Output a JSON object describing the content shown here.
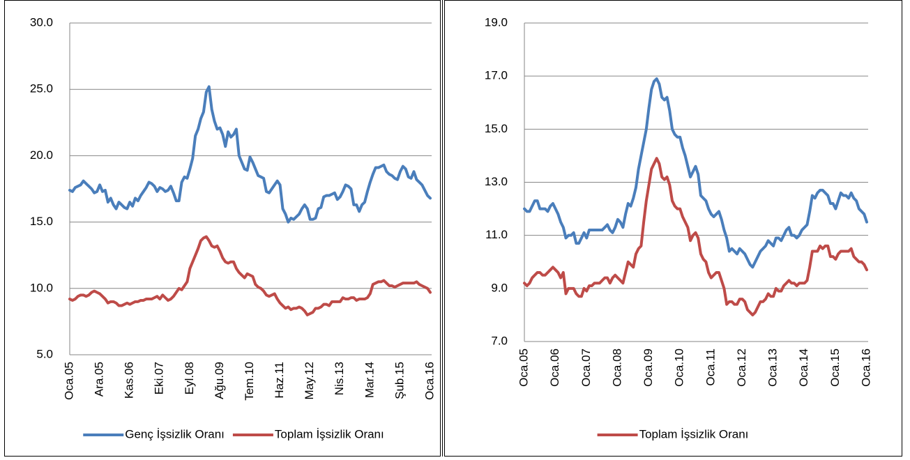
{
  "chart_data": [
    {
      "type": "line",
      "categories": [
        "Oca.05",
        null,
        null,
        null,
        null,
        null,
        null,
        null,
        null,
        null,
        null,
        "Ara.05",
        null,
        null,
        null,
        null,
        null,
        null,
        null,
        null,
        null,
        null,
        "Kas.06",
        null,
        null,
        null,
        null,
        null,
        null,
        null,
        null,
        null,
        null,
        "Eki.07",
        null,
        null,
        null,
        null,
        null,
        null,
        null,
        null,
        null,
        null,
        "Eyl.08",
        null,
        null,
        null,
        null,
        null,
        null,
        null,
        null,
        null,
        null,
        "Ağu.09",
        null,
        null,
        null,
        null,
        null,
        null,
        null,
        null,
        null,
        null,
        "Tem.10",
        null,
        null,
        null,
        null,
        null,
        null,
        null,
        null,
        null,
        null,
        "Haz.11",
        null,
        null,
        null,
        null,
        null,
        null,
        null,
        null,
        null,
        null,
        "May.12",
        null,
        null,
        null,
        null,
        null,
        null,
        null,
        null,
        null,
        null,
        "Nis.13",
        null,
        null,
        null,
        null,
        null,
        null,
        null,
        null,
        null,
        null,
        "Mar.14",
        null,
        null,
        null,
        null,
        null,
        null,
        null,
        null,
        null,
        null,
        "Şub.15",
        null,
        null,
        null,
        null,
        null,
        null,
        null,
        null,
        null,
        null,
        "Oca.16"
      ],
      "series": [
        {
          "name": "Genç İşsizlik Oranı",
          "color": "#4a7ebb",
          "values": [
            17.4,
            17.3,
            17.6,
            17.7,
            17.8,
            18.1,
            17.9,
            17.7,
            17.5,
            17.2,
            17.3,
            17.8,
            17.3,
            17.4,
            16.5,
            16.8,
            16.3,
            16.0,
            16.5,
            16.3,
            16.1,
            16.0,
            16.5,
            16.2,
            16.8,
            16.6,
            17.0,
            17.3,
            17.6,
            18.0,
            17.9,
            17.7,
            17.3,
            17.6,
            17.5,
            17.3,
            17.4,
            17.7,
            17.2,
            16.6,
            16.6,
            18.0,
            18.4,
            18.3,
            19.0,
            19.8,
            21.5,
            22.0,
            22.8,
            23.3,
            24.8,
            25.2,
            23.5,
            22.6,
            22.0,
            22.1,
            21.6,
            20.7,
            21.8,
            21.4,
            21.6,
            22.0,
            20.0,
            19.5,
            19.0,
            18.9,
            19.9,
            19.5,
            19.0,
            18.5,
            18.4,
            18.3,
            17.3,
            17.2,
            17.5,
            17.8,
            18.1,
            17.8,
            16.0,
            15.6,
            15.0,
            15.3,
            15.2,
            15.4,
            15.6,
            16.0,
            16.3,
            16.0,
            15.2,
            15.2,
            15.3,
            16.0,
            16.1,
            16.9,
            17.0,
            17.0,
            17.1,
            17.2,
            16.7,
            16.9,
            17.3,
            17.8,
            17.7,
            17.5,
            16.3,
            16.3,
            15.8,
            16.3,
            16.5,
            17.3,
            18.0,
            18.6,
            19.1,
            19.1,
            19.2,
            19.3,
            18.8,
            18.6,
            18.5,
            18.3,
            18.2,
            18.8,
            19.2,
            19.0,
            18.4,
            18.3,
            18.8,
            18.2,
            18.0,
            17.8,
            17.4,
            17.0,
            16.8
          ]
        },
        {
          "name": "Toplam İşsizlik Oranı",
          "color": "#be4b48",
          "values": [
            9.2,
            9.1,
            9.2,
            9.4,
            9.5,
            9.5,
            9.4,
            9.5,
            9.7,
            9.8,
            9.7,
            9.6,
            9.4,
            9.2,
            8.9,
            9.0,
            9.0,
            8.9,
            8.7,
            8.7,
            8.8,
            8.9,
            8.8,
            8.9,
            9.0,
            9.0,
            9.1,
            9.1,
            9.2,
            9.2,
            9.2,
            9.3,
            9.4,
            9.2,
            9.5,
            9.3,
            9.1,
            9.2,
            9.4,
            9.7,
            10.0,
            9.9,
            10.2,
            10.5,
            11.5,
            12.0,
            12.5,
            13.0,
            13.6,
            13.8,
            13.9,
            13.6,
            13.2,
            13.1,
            13.2,
            12.8,
            12.3,
            12.0,
            11.9,
            12.0,
            12.0,
            11.5,
            11.2,
            11.0,
            10.8,
            11.1,
            11.0,
            10.9,
            10.3,
            10.1,
            10.0,
            9.8,
            9.5,
            9.4,
            9.5,
            9.6,
            9.2,
            8.9,
            8.7,
            8.5,
            8.6,
            8.4,
            8.5,
            8.5,
            8.6,
            8.5,
            8.3,
            8.0,
            8.1,
            8.2,
            8.5,
            8.5,
            8.6,
            8.8,
            8.8,
            8.7,
            9.0,
            9.0,
            9.0,
            9.0,
            9.3,
            9.2,
            9.2,
            9.3,
            9.3,
            9.1,
            9.2,
            9.2,
            9.2,
            9.3,
            9.6,
            10.3,
            10.4,
            10.5,
            10.5,
            10.6,
            10.4,
            10.2,
            10.2,
            10.1,
            10.2,
            10.3,
            10.4,
            10.4,
            10.4,
            10.4,
            10.4,
            10.5,
            10.3,
            10.2,
            10.1,
            10.0,
            9.7
          ]
        }
      ],
      "ylim": [
        5,
        30
      ],
      "yticks": [
        {
          "value": 5,
          "label": "5.0"
        },
        {
          "value": 10,
          "label": "10.0"
        },
        {
          "value": 15,
          "label": "15.0"
        },
        {
          "value": 20,
          "label": "20.0"
        },
        {
          "value": 25,
          "label": "25.0"
        },
        {
          "value": 30,
          "label": "30.0"
        }
      ],
      "grid": true,
      "legend": "bottom"
    },
    {
      "type": "line",
      "categories": [
        "Oca.05",
        null,
        null,
        null,
        null,
        null,
        null,
        null,
        null,
        null,
        null,
        null,
        "Oca.06",
        null,
        null,
        null,
        null,
        null,
        null,
        null,
        null,
        null,
        null,
        null,
        "Oca.07",
        null,
        null,
        null,
        null,
        null,
        null,
        null,
        null,
        null,
        null,
        null,
        "Oca.08",
        null,
        null,
        null,
        null,
        null,
        null,
        null,
        null,
        null,
        null,
        null,
        "Oca.09",
        null,
        null,
        null,
        null,
        null,
        null,
        null,
        null,
        null,
        null,
        null,
        "Oca.10",
        null,
        null,
        null,
        null,
        null,
        null,
        null,
        null,
        null,
        null,
        null,
        "Oca.11",
        null,
        null,
        null,
        null,
        null,
        null,
        null,
        null,
        null,
        null,
        null,
        "Oca.12",
        null,
        null,
        null,
        null,
        null,
        null,
        null,
        null,
        null,
        null,
        null,
        "Oca.13",
        null,
        null,
        null,
        null,
        null,
        null,
        null,
        null,
        null,
        null,
        null,
        "Oca.14",
        null,
        null,
        null,
        null,
        null,
        null,
        null,
        null,
        null,
        null,
        null,
        "Oca.15",
        null,
        null,
        null,
        null,
        null,
        null,
        null,
        null,
        null,
        null,
        null,
        "Oca.16"
      ],
      "series": [
        {
          "color": "#4a7ebb",
          "values": [
            12.0,
            11.9,
            11.9,
            12.1,
            12.3,
            12.3,
            12.0,
            12.0,
            12.0,
            11.9,
            12.1,
            12.2,
            12.0,
            11.8,
            11.5,
            11.3,
            10.9,
            11.0,
            11.0,
            11.1,
            10.7,
            10.7,
            10.9,
            11.1,
            10.9,
            11.2,
            11.2,
            11.2,
            11.2,
            11.2,
            11.2,
            11.3,
            11.4,
            11.2,
            11.1,
            11.3,
            11.6,
            11.5,
            11.3,
            11.8,
            12.2,
            12.1,
            12.4,
            12.8,
            13.5,
            14.0,
            14.5,
            15.0,
            15.8,
            16.5,
            16.8,
            16.9,
            16.7,
            16.2,
            16.1,
            16.2,
            15.7,
            15.0,
            14.8,
            14.7,
            14.7,
            14.3,
            14.0,
            13.6,
            13.2,
            13.4,
            13.6,
            13.3,
            12.5,
            12.4,
            12.3,
            12.0,
            11.8,
            11.7,
            11.8,
            11.9,
            11.6,
            11.2,
            10.9,
            10.4,
            10.5,
            10.4,
            10.3,
            10.5,
            10.4,
            10.3,
            10.1,
            9.9,
            9.8,
            10.0,
            10.2,
            10.4,
            10.5,
            10.6,
            10.8,
            10.7,
            10.6,
            10.9,
            10.9,
            10.8,
            11.0,
            11.2,
            11.3,
            11.0,
            11.0,
            10.9,
            11.0,
            11.2,
            11.3,
            11.4,
            11.9,
            12.5,
            12.4,
            12.6,
            12.7,
            12.7,
            12.6,
            12.5,
            12.2,
            12.2,
            12.0,
            12.3,
            12.6,
            12.5,
            12.5,
            12.4,
            12.6,
            12.4,
            12.3,
            12.0,
            11.9,
            11.8,
            11.5
          ]
        },
        {
          "name": "Toplam İşsizlik Oranı",
          "color": "#be4b48",
          "values": [
            9.2,
            9.1,
            9.2,
            9.4,
            9.5,
            9.6,
            9.6,
            9.5,
            9.5,
            9.6,
            9.7,
            9.8,
            9.7,
            9.6,
            9.4,
            9.6,
            8.8,
            9.0,
            9.0,
            9.0,
            8.8,
            8.7,
            8.7,
            9.0,
            8.9,
            9.1,
            9.1,
            9.2,
            9.2,
            9.2,
            9.3,
            9.4,
            9.4,
            9.2,
            9.4,
            9.5,
            9.4,
            9.3,
            9.2,
            9.6,
            10.0,
            9.9,
            9.8,
            10.3,
            10.5,
            10.6,
            11.5,
            12.3,
            12.9,
            13.5,
            13.7,
            13.9,
            13.7,
            13.2,
            13.1,
            13.2,
            12.9,
            12.3,
            12.1,
            12.0,
            12.0,
            11.7,
            11.5,
            11.3,
            10.8,
            11.0,
            11.1,
            10.9,
            10.3,
            10.1,
            10.0,
            9.6,
            9.4,
            9.5,
            9.6,
            9.6,
            9.3,
            9.0,
            8.4,
            8.5,
            8.5,
            8.4,
            8.4,
            8.6,
            8.6,
            8.5,
            8.2,
            8.1,
            8.0,
            8.1,
            8.3,
            8.5,
            8.5,
            8.6,
            8.8,
            8.7,
            8.7,
            9.0,
            8.9,
            8.9,
            9.1,
            9.2,
            9.3,
            9.2,
            9.2,
            9.1,
            9.2,
            9.2,
            9.2,
            9.3,
            9.8,
            10.4,
            10.4,
            10.4,
            10.6,
            10.5,
            10.6,
            10.6,
            10.2,
            10.2,
            10.1,
            10.3,
            10.4,
            10.4,
            10.4,
            10.4,
            10.5,
            10.2,
            10.1,
            10.0,
            10.0,
            9.9,
            9.7
          ]
        }
      ],
      "ylim": [
        7,
        19
      ],
      "yticks": [
        {
          "value": 7,
          "label": "7.0"
        },
        {
          "value": 9,
          "label": "9.0"
        },
        {
          "value": 11,
          "label": "11.0"
        },
        {
          "value": 13,
          "label": "13.0"
        },
        {
          "value": 15,
          "label": "15.0"
        },
        {
          "value": 17,
          "label": "17.0"
        },
        {
          "value": 19,
          "label": "19.0"
        }
      ],
      "grid": true,
      "legend": "bottom"
    }
  ]
}
